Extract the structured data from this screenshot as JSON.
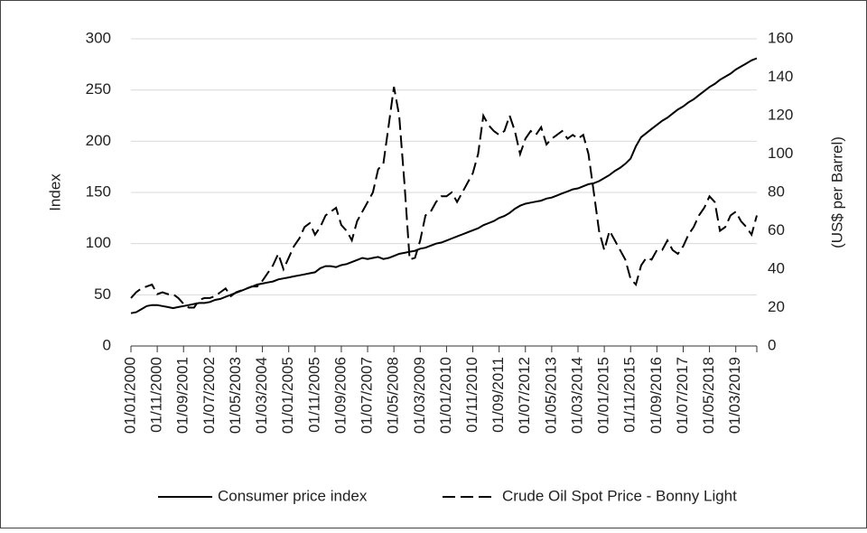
{
  "chart_data": {
    "type": "line",
    "y_label": "Index",
    "y2_label": "(US$ per Barrel)",
    "categories": [
      "01/01/2000",
      null,
      null,
      null,
      null,
      "01/11/2000",
      null,
      null,
      null,
      null,
      "01/09/2001",
      null,
      null,
      null,
      null,
      "01/07/2002",
      null,
      null,
      null,
      null,
      "01/05/2003",
      null,
      null,
      null,
      null,
      "01/03/2004",
      null,
      null,
      null,
      null,
      "01/01/2005",
      null,
      null,
      null,
      null,
      "01/11/2005",
      null,
      null,
      null,
      null,
      "01/09/2006",
      null,
      null,
      null,
      null,
      "01/07/2007",
      null,
      null,
      null,
      null,
      "01/05/2008",
      null,
      null,
      null,
      null,
      "01/03/2009",
      null,
      null,
      null,
      null,
      "01/01/2010",
      null,
      null,
      null,
      null,
      "01/11/2010",
      null,
      null,
      null,
      null,
      "01/09/2011",
      null,
      null,
      null,
      null,
      "01/07/2012",
      null,
      null,
      null,
      null,
      "01/05/2013",
      null,
      null,
      null,
      null,
      "01/03/2014",
      null,
      null,
      null,
      null,
      "01/01/2015",
      null,
      null,
      null,
      null,
      "01/11/2015",
      null,
      null,
      null,
      null,
      "01/09/2016",
      null,
      null,
      null,
      null,
      "01/07/2017",
      null,
      null,
      null,
      null,
      "01/05/2018",
      null,
      null,
      null,
      null,
      "01/03/2019",
      null,
      null,
      null,
      null
    ],
    "series": [
      {
        "name": "Consumer price index",
        "color": "#000000",
        "dash": false,
        "values": [
          32,
          33,
          36,
          39,
          40,
          40,
          39,
          38,
          37,
          38,
          39,
          40,
          41,
          42,
          42,
          43,
          45,
          46,
          48,
          50,
          52,
          54,
          56,
          58,
          60,
          61,
          62,
          63,
          65,
          66,
          67,
          68,
          69,
          70,
          71,
          72,
          76,
          78,
          78,
          77,
          79,
          80,
          82,
          84,
          86,
          85,
          86,
          87,
          85,
          86,
          88,
          90,
          91,
          92,
          93,
          95,
          96,
          98,
          100,
          101,
          103,
          105,
          107,
          109,
          111,
          113,
          115,
          118,
          120,
          122,
          125,
          127,
          130,
          134,
          137,
          139,
          140,
          141,
          142,
          144,
          145,
          147,
          149,
          151,
          153,
          154,
          156,
          158,
          159,
          161,
          164,
          167,
          171,
          174,
          178,
          183,
          195,
          204,
          208,
          212,
          216,
          220,
          223,
          227,
          231,
          234,
          238,
          241,
          245,
          249,
          253,
          256,
          260,
          263,
          266,
          270,
          273,
          276,
          279,
          281
        ]
      },
      {
        "name": "Crude Oil Spot Price - Bonny Light",
        "color": "#000000",
        "dash": true,
        "axis": "y2",
        "values": [
          25,
          28,
          30,
          31,
          32,
          27,
          28,
          27,
          27,
          25,
          22,
          20,
          20,
          24,
          25,
          25,
          26,
          28,
          30,
          26,
          28,
          29,
          30,
          31,
          31,
          34,
          38,
          42,
          48,
          40,
          46,
          52,
          56,
          62,
          64,
          58,
          62,
          68,
          70,
          72,
          63,
          60,
          55,
          65,
          70,
          75,
          80,
          92,
          95,
          115,
          135,
          120,
          85,
          45,
          46,
          55,
          68,
          70,
          75,
          78,
          78,
          80,
          75,
          80,
          85,
          90,
          100,
          120,
          115,
          112,
          110,
          112,
          120,
          112,
          100,
          108,
          112,
          110,
          114,
          105,
          108,
          110,
          112,
          108,
          110,
          108,
          110,
          100,
          80,
          60,
          50,
          60,
          55,
          50,
          45,
          35,
          32,
          42,
          46,
          45,
          50,
          50,
          55,
          50,
          48,
          52,
          58,
          62,
          68,
          72,
          78,
          75,
          60,
          62,
          68,
          70,
          65,
          62,
          58,
          68
        ]
      }
    ],
    "ylim": [
      0,
      300
    ],
    "yticks": [
      0,
      50,
      100,
      150,
      200,
      250,
      300
    ],
    "y2lim": [
      0,
      160
    ],
    "y2ticks": [
      0,
      20,
      40,
      60,
      80,
      100,
      120,
      140,
      160
    ],
    "grid": true,
    "legend": "bottom"
  }
}
